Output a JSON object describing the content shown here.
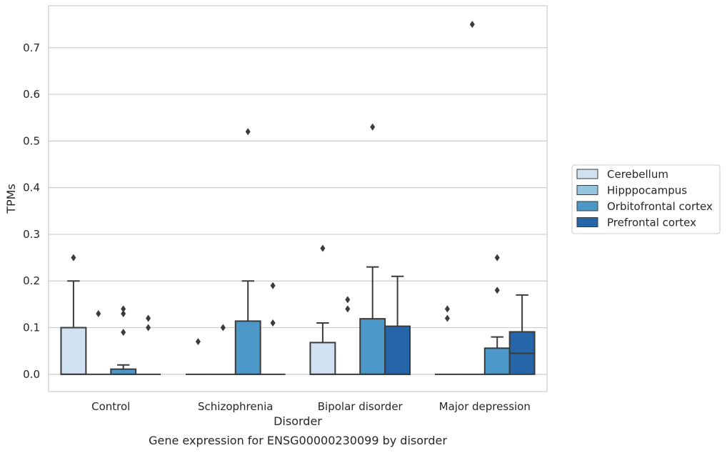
{
  "chart_data": {
    "type": "box",
    "title": "",
    "caption": "Gene expression for ENSG00000230099 by disorder",
    "xlabel": "Disorder",
    "ylabel": "TPMs",
    "ylim": [
      -0.037,
      0.79
    ],
    "yticks": [
      0.0,
      0.1,
      0.2,
      0.3,
      0.4,
      0.5,
      0.6,
      0.7
    ],
    "ytick_labels": [
      "0.0",
      "0.1",
      "0.2",
      "0.3",
      "0.4",
      "0.5",
      "0.6",
      "0.7"
    ],
    "categories": [
      "Control",
      "Schizophrenia",
      "Bipolar disorder",
      "Major depression"
    ],
    "grid": true,
    "legend_position": "right",
    "series": [
      {
        "name": "Cerebellum",
        "color": "#d0e1f2",
        "boxes": [
          {
            "q1": 0.0,
            "median": 0.0,
            "q3": 0.1,
            "whisker_low": 0.0,
            "whisker_high": 0.2,
            "outliers": [
              0.25
            ]
          },
          {
            "q1": 0.0,
            "median": 0.0,
            "q3": 0.0,
            "whisker_low": 0.0,
            "whisker_high": 0.0,
            "outliers": [
              0.07
            ]
          },
          {
            "q1": 0.0,
            "median": 0.0,
            "q3": 0.068,
            "whisker_low": 0.0,
            "whisker_high": 0.11,
            "outliers": [
              0.27
            ]
          },
          {
            "q1": 0.0,
            "median": 0.0,
            "q3": 0.0,
            "whisker_low": 0.0,
            "whisker_high": 0.0,
            "outliers": [
              0.12,
              0.14
            ]
          }
        ]
      },
      {
        "name": "Hipppocampus",
        "color": "#94c4df",
        "boxes": [
          {
            "q1": 0.0,
            "median": 0.0,
            "q3": 0.0,
            "whisker_low": 0.0,
            "whisker_high": 0.0,
            "outliers": [
              0.13
            ]
          },
          {
            "q1": 0.0,
            "median": 0.0,
            "q3": 0.0,
            "whisker_low": 0.0,
            "whisker_high": 0.0,
            "outliers": [
              0.1
            ]
          },
          {
            "q1": 0.0,
            "median": 0.0,
            "q3": 0.0,
            "whisker_low": 0.0,
            "whisker_high": 0.0,
            "outliers": [
              0.14,
              0.16
            ]
          },
          {
            "q1": 0.0,
            "median": 0.0,
            "q3": 0.0,
            "whisker_low": 0.0,
            "whisker_high": 0.0,
            "outliers": [
              0.75
            ]
          }
        ]
      },
      {
        "name": "Orbitofrontal cortex",
        "color": "#4b98c9",
        "boxes": [
          {
            "q1": 0.0,
            "median": 0.0,
            "q3": 0.011,
            "whisker_low": 0.0,
            "whisker_high": 0.02,
            "outliers": [
              0.09,
              0.13,
              0.14
            ]
          },
          {
            "q1": 0.0,
            "median": 0.0,
            "q3": 0.114,
            "whisker_low": 0.0,
            "whisker_high": 0.2,
            "outliers": [
              0.52
            ]
          },
          {
            "q1": 0.0,
            "median": 0.0,
            "q3": 0.119,
            "whisker_low": 0.0,
            "whisker_high": 0.23,
            "outliers": [
              0.53
            ]
          },
          {
            "q1": 0.0,
            "median": 0.0,
            "q3": 0.056,
            "whisker_low": 0.0,
            "whisker_high": 0.08,
            "outliers": [
              0.18,
              0.25
            ]
          }
        ]
      },
      {
        "name": "Prefrontal cortex",
        "color": "#2565a8",
        "boxes": [
          {
            "q1": 0.0,
            "median": 0.0,
            "q3": 0.0,
            "whisker_low": 0.0,
            "whisker_high": 0.0,
            "outliers": [
              0.1,
              0.12
            ]
          },
          {
            "q1": 0.0,
            "median": 0.0,
            "q3": 0.0,
            "whisker_low": 0.0,
            "whisker_high": 0.0,
            "outliers": [
              0.11,
              0.19
            ]
          },
          {
            "q1": 0.0,
            "median": 0.0,
            "q3": 0.103,
            "whisker_low": 0.0,
            "whisker_high": 0.21,
            "outliers": []
          },
          {
            "q1": 0.0,
            "median": 0.045,
            "q3": 0.091,
            "whisker_low": 0.0,
            "whisker_high": 0.17,
            "outliers": []
          }
        ]
      }
    ]
  }
}
